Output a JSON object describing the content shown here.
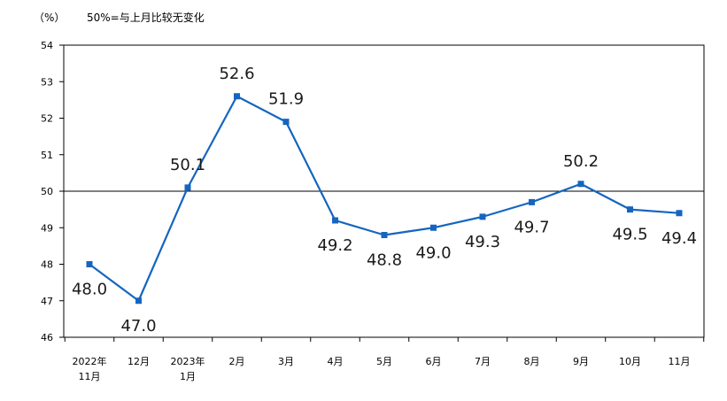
{
  "header": {
    "unit": "（%）",
    "note": "50%=与上月比较无变化"
  },
  "chart_data": {
    "type": "line",
    "title": "",
    "xlabel": "",
    "ylabel": "",
    "ylim": [
      46,
      54
    ],
    "yticks": [
      46,
      47,
      48,
      49,
      50,
      51,
      52,
      53,
      54
    ],
    "reference_line": 50,
    "grid": false,
    "categories": [
      [
        "2022年",
        "11月"
      ],
      [
        "12月"
      ],
      [
        "2023年",
        "1月"
      ],
      [
        "2月"
      ],
      [
        "3月"
      ],
      [
        "4月"
      ],
      [
        "5月"
      ],
      [
        "6月"
      ],
      [
        "7月"
      ],
      [
        "8月"
      ],
      [
        "9月"
      ],
      [
        "10月"
      ],
      [
        "11月"
      ]
    ],
    "series": [
      {
        "values": [
          48.0,
          47.0,
          50.1,
          52.6,
          51.9,
          49.2,
          48.8,
          49.0,
          49.3,
          49.7,
          50.2,
          49.5,
          49.4
        ],
        "labels": [
          "48.0",
          "47.0",
          "50.1",
          "52.6",
          "51.9",
          "49.2",
          "48.8",
          "49.0",
          "49.3",
          "49.7",
          "50.2",
          "49.5",
          "49.4"
        ],
        "label_pos": [
          "below",
          "below",
          "above",
          "above",
          "above",
          "below",
          "below",
          "below",
          "below",
          "below",
          "above",
          "below",
          "below"
        ],
        "color": "#1565C0"
      }
    ]
  }
}
